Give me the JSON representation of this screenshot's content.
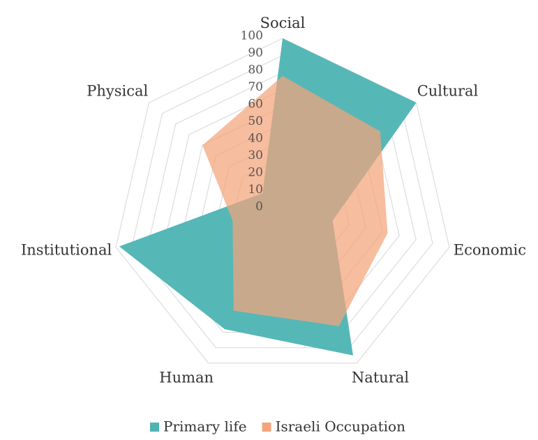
{
  "chart_data": {
    "type": "radar",
    "categories": [
      "Social",
      "Cultural",
      "Economic",
      "Natural",
      "Human",
      "Institutional",
      "Physical"
    ],
    "series": [
      {
        "name": "Primary life",
        "color": "#4db3b3",
        "values": [
          100,
          100,
          30,
          95,
          78,
          98,
          15
        ]
      },
      {
        "name": "Israeli Occupation",
        "color": "#f4a47a",
        "values": [
          78,
          73,
          63,
          76,
          66,
          30,
          60
        ]
      }
    ],
    "ylim": [
      0,
      100
    ],
    "yticks": [
      0,
      10,
      20,
      30,
      40,
      50,
      60,
      70,
      80,
      90,
      100
    ],
    "grid": true,
    "legend": "bottom"
  }
}
